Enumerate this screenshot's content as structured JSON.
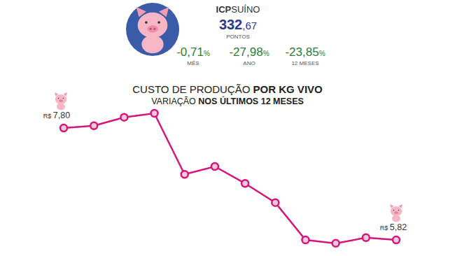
{
  "header": {
    "index_prefix": "ICP",
    "index_name": "SUÍNO",
    "value": 332.67,
    "value_label": "332,67",
    "unit": "PONTOS",
    "changes": [
      {
        "value": -0.71,
        "label": "-0,71%",
        "period": "MÊS"
      },
      {
        "value": -27.98,
        "label": "-27,98%",
        "period": "ANO"
      },
      {
        "value": -23.85,
        "label": "-23,85%",
        "period": "12 MESES"
      }
    ]
  },
  "chart_data": {
    "type": "line",
    "title": "CUSTO DE PRODUÇÃO POR KG VIVO",
    "subtitle": "VARIAÇÃO NOS ÚLTIMOS 12 MESES",
    "categories": [
      null,
      null,
      null,
      null,
      null,
      null,
      null,
      null,
      null,
      null,
      null,
      null
    ],
    "values": [
      7.8,
      7.84,
      7.99,
      8.06,
      6.98,
      7.12,
      6.82,
      6.48,
      5.82,
      5.76,
      5.86,
      5.82
    ],
    "value_labels": [
      "R$ 7,80",
      null,
      null,
      null,
      null,
      null,
      null,
      null,
      null,
      null,
      null,
      "R$ 5,82"
    ],
    "color": "#d6157a",
    "marker": "circle",
    "ylim": [
      5.6,
      8.2
    ],
    "tick_labels": false,
    "grid": false
  }
}
